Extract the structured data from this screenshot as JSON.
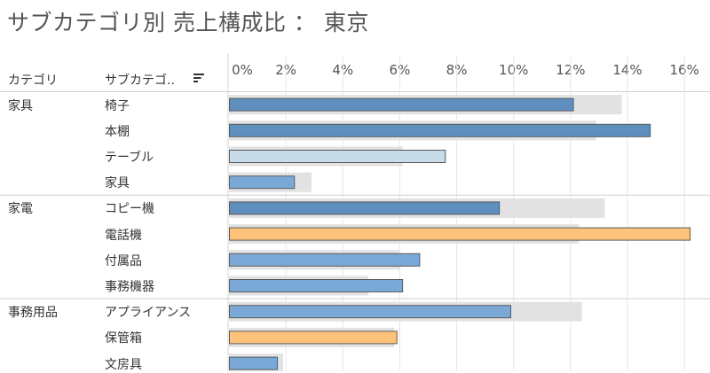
{
  "title": "サブカテゴリ別 売上構成比 ： 東京",
  "headers": {
    "category": "カテゴリ",
    "subcategory": "サブカテゴ.."
  },
  "icons": {
    "sort": "sort-descending-icon"
  },
  "colors": {
    "blue": "#7aa9d8",
    "blue_dark": "#5f8fbf",
    "blue_light": "#c8dbe8",
    "orange": "#ffc27a",
    "reference": "#e2e2e2",
    "grid": "#e6e6e6"
  },
  "chart_data": {
    "type": "bar",
    "orientation": "horizontal",
    "title": "サブカテゴリ別 売上構成比 ： 東京",
    "xlim": [
      0,
      16.4
    ],
    "x_ticks": [
      0,
      2,
      4,
      6,
      8,
      10,
      12,
      14,
      16
    ],
    "x_tick_labels": [
      "0%",
      "2%",
      "4%",
      "6%",
      "8%",
      "10%",
      "12%",
      "14%",
      "16%"
    ],
    "grid": true,
    "groups": [
      {
        "category": "家具",
        "rows": [
          {
            "subcategory": "椅子",
            "value": 12.1,
            "reference": 13.8,
            "color": "blue_dark"
          },
          {
            "subcategory": "本棚",
            "value": 14.8,
            "reference": 12.9,
            "color": "blue_dark"
          },
          {
            "subcategory": "テーブル",
            "value": 7.6,
            "reference": 6.1,
            "color": "blue_light"
          },
          {
            "subcategory": "家具",
            "value": 2.3,
            "reference": 2.9,
            "color": "blue"
          }
        ]
      },
      {
        "category": "家電",
        "rows": [
          {
            "subcategory": "コピー機",
            "value": 9.5,
            "reference": 13.2,
            "color": "blue_dark"
          },
          {
            "subcategory": "電話機",
            "value": 16.2,
            "reference": 12.3,
            "color": "orange"
          },
          {
            "subcategory": "付属品",
            "value": 6.7,
            "reference": 6.0,
            "color": "blue"
          },
          {
            "subcategory": "事務機器",
            "value": 6.1,
            "reference": 4.9,
            "color": "blue"
          }
        ]
      },
      {
        "category": "事務用品",
        "rows": [
          {
            "subcategory": "アプライアンス",
            "value": 9.9,
            "reference": 12.4,
            "color": "blue"
          },
          {
            "subcategory": "保管箱",
            "value": 5.9,
            "reference": 5.8,
            "color": "orange"
          },
          {
            "subcategory": "文房具",
            "value": 1.7,
            "reference": 1.9,
            "color": "blue"
          }
        ]
      }
    ]
  }
}
